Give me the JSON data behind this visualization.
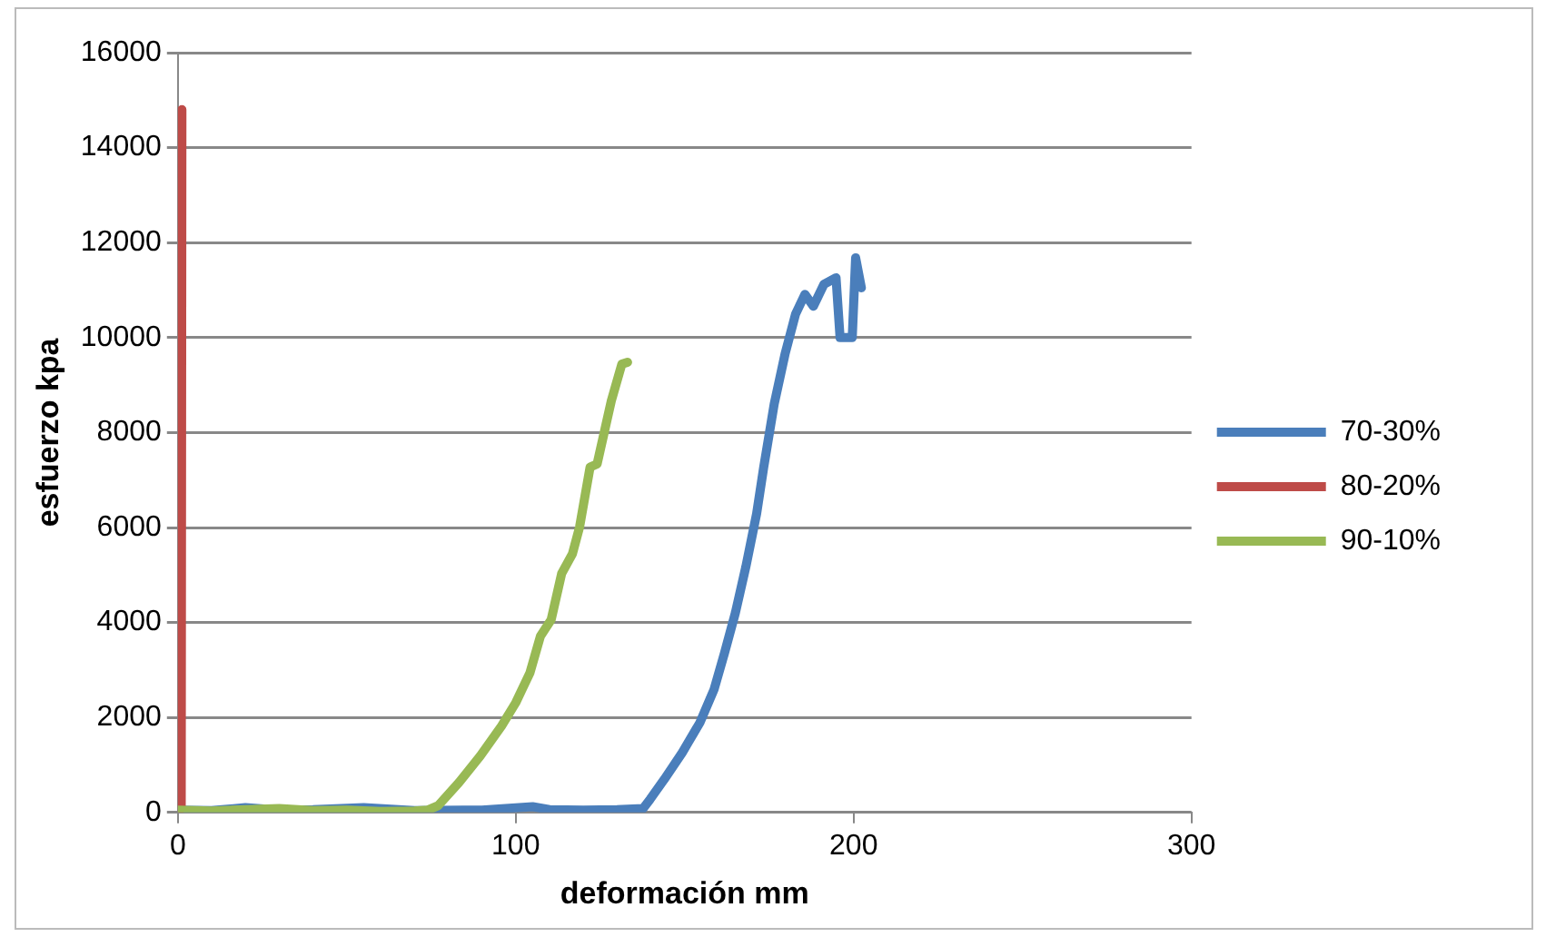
{
  "chart_data": {
    "type": "line",
    "xlabel": "deformación mm",
    "ylabel": "esfuerzo kpa",
    "xlim": [
      0,
      300
    ],
    "xticks": [
      0,
      100,
      200,
      300
    ],
    "ylim": [
      0,
      16000
    ],
    "yticks": [
      0,
      2000,
      4000,
      6000,
      8000,
      10000,
      12000,
      14000,
      16000
    ],
    "grid": "y",
    "legend": "right",
    "marker": "none",
    "line_style": "solid",
    "series": [
      {
        "name": "70-30%",
        "color": "#4a7ebb",
        "x": [
          0,
          10,
          20,
          30,
          40,
          55,
          70,
          90,
          105,
          110,
          120,
          130,
          137.7,
          139.8,
          144,
          149.3,
          154.5,
          158.7,
          161.8,
          165,
          168.1,
          171.3,
          173.4,
          176.5,
          179.7,
          182.8,
          185.6,
          188.1,
          191.2,
          194.8,
          196,
          199.6,
          200.6,
          202.3
        ],
        "values": [
          50,
          40,
          100,
          50,
          60,
          100,
          40,
          50,
          120,
          60,
          50,
          60,
          80,
          280,
          700,
          1260,
          1890,
          2590,
          3360,
          4200,
          5170,
          6290,
          7270,
          8600,
          9650,
          10490,
          10910,
          10660,
          11120,
          11260,
          10000,
          10000,
          11680,
          11050
        ]
      },
      {
        "name": "80-20%",
        "color": "#be4b48",
        "x": [
          0,
          1,
          1.2
        ],
        "values": [
          0,
          100,
          14800
        ]
      },
      {
        "name": "90-10%",
        "color": "#98b954",
        "x": [
          0,
          10,
          20,
          30,
          40,
          50,
          60,
          70,
          74,
          77,
          83.2,
          89.5,
          95.8,
          100,
          104.2,
          107.3,
          110.5,
          113.6,
          116.8,
          118.9,
          122,
          124.1,
          125.2,
          128.3,
          131.4,
          133.1
        ],
        "values": [
          50,
          30,
          60,
          80,
          40,
          50,
          20,
          30,
          50,
          140,
          630,
          1190,
          1820,
          2310,
          2940,
          3710,
          4060,
          5030,
          5450,
          6010,
          7270,
          7340,
          7690,
          8670,
          9440,
          9480
        ]
      }
    ]
  }
}
